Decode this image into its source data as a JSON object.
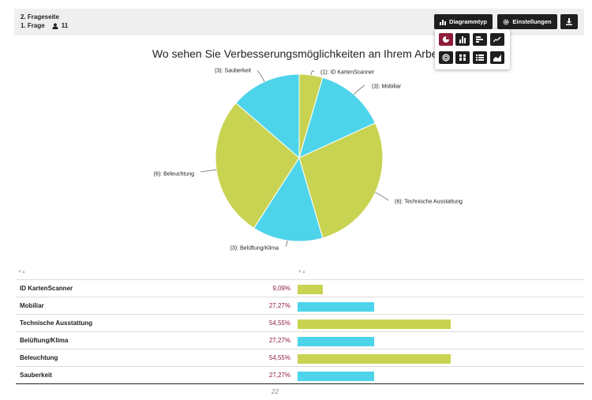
{
  "header": {
    "page_label": "2. Frageseite",
    "question_label": "1. Frage",
    "respondents": "11",
    "chart_type_label": "Diagrammtyp",
    "settings_label": "Einstellungen",
    "download_icon": "download-icon"
  },
  "chart_type_options": [
    {
      "icon": "pie-chart-icon",
      "active": true
    },
    {
      "icon": "bar-chart-icon",
      "active": false
    },
    {
      "icon": "horizontal-bar-icon",
      "active": false
    },
    {
      "icon": "line-chart-icon",
      "active": false
    },
    {
      "icon": "polar-chart-icon",
      "active": false
    },
    {
      "icon": "stacked-bar-icon",
      "active": false
    },
    {
      "icon": "list-icon",
      "active": false
    },
    {
      "icon": "area-chart-icon",
      "active": false
    }
  ],
  "colors": {
    "green": "#c9d352",
    "cyan": "#4dd4ea",
    "accent": "#8e1d3a",
    "dark": "#1f1f1f"
  },
  "chart_data": {
    "type": "pie",
    "title": "Wo sehen Sie Verbesserungsmöglichkeiten an Ihrem Arbeitsplat",
    "slices": [
      {
        "label": "(1): ID KartenScanner",
        "value": 1,
        "color": "#c9d352"
      },
      {
        "label": "(3): Mobiliar",
        "value": 3,
        "color": "#4dd4ea"
      },
      {
        "label": "(6): Technische Ausstattung",
        "value": 6,
        "color": "#c9d352"
      },
      {
        "label": "(3): Belüftung/Klima",
        "value": 3,
        "color": "#4dd4ea"
      },
      {
        "label": "(6): Beleuchtung",
        "value": 6,
        "color": "#c9d352"
      },
      {
        "label": "(3): Sauberkeit",
        "value": 3,
        "color": "#4dd4ea"
      }
    ]
  },
  "table": {
    "rows": [
      {
        "name": "ID KartenScanner",
        "percent": "9,09%",
        "count": "1",
        "value": 1,
        "color": "#c9d352"
      },
      {
        "name": "Mobiliar",
        "percent": "27,27%",
        "count": "3",
        "value": 3,
        "color": "#4dd4ea"
      },
      {
        "name": "Technische Ausstattung",
        "percent": "54,55%",
        "count": "6",
        "value": 6,
        "color": "#c9d352"
      },
      {
        "name": "Belüftung/Klima",
        "percent": "27,27%",
        "count": "3",
        "value": 3,
        "color": "#4dd4ea"
      },
      {
        "name": "Beleuchtung",
        "percent": "54,55%",
        "count": "6",
        "value": 6,
        "color": "#c9d352"
      },
      {
        "name": "Sauberkeit",
        "percent": "27,27%",
        "count": "3",
        "value": 3,
        "color": "#4dd4ea"
      }
    ],
    "total": "22"
  }
}
